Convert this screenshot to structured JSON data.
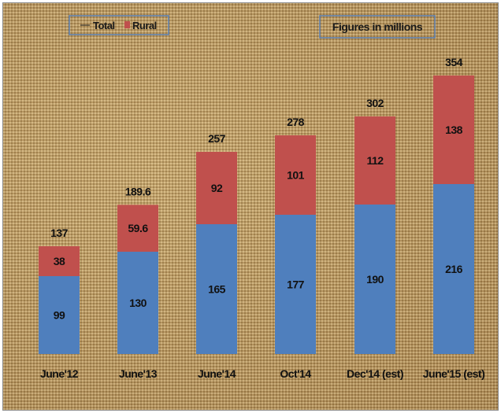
{
  "chart_data": {
    "type": "bar",
    "stacked": true,
    "categories": [
      "June'12",
      "June'13",
      "June'14",
      "Oct'14",
      "Dec'14 (est)",
      "June'15 (est)"
    ],
    "series": [
      {
        "name": "",
        "values": [
          99,
          130,
          165,
          177,
          190,
          216
        ],
        "color": "#4f7fbd"
      },
      {
        "name": "Rural",
        "values": [
          38,
          59.6,
          92,
          101,
          112,
          138
        ],
        "color": "#c0504d"
      }
    ],
    "totals": [
      137,
      189.6,
      257,
      278,
      302,
      354
    ],
    "legend": {
      "entries": [
        "Total",
        "Rural"
      ],
      "placement": "top-left"
    },
    "note": "Figures in millions",
    "ylim": [
      0,
      370
    ],
    "grid": false
  }
}
